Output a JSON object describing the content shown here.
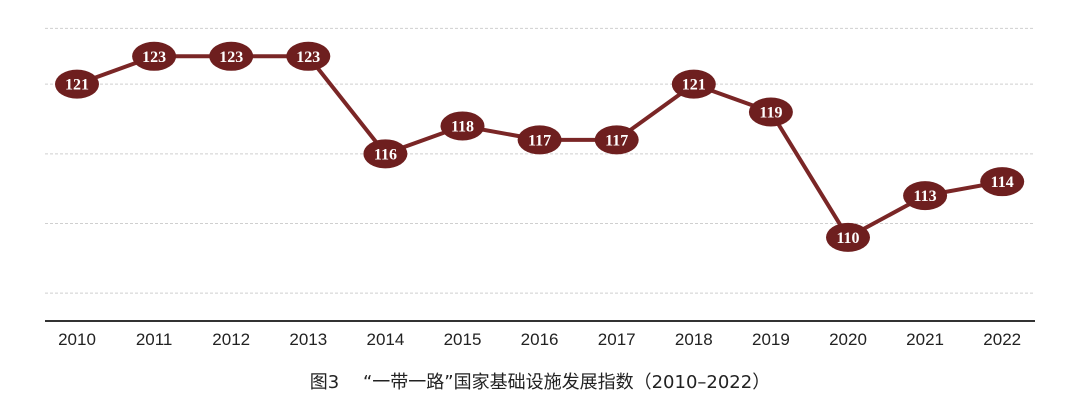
{
  "chart_data": {
    "type": "line",
    "title": "",
    "xlabel": "",
    "ylabel": "",
    "x": [
      "2010",
      "2011",
      "2012",
      "2013",
      "2014",
      "2015",
      "2016",
      "2017",
      "2018",
      "2019",
      "2020",
      "2021",
      "2022"
    ],
    "series": [
      {
        "values": [
          121,
          123,
          123,
          123,
          116,
          118,
          117,
          117,
          121,
          119,
          110,
          113,
          114
        ]
      }
    ],
    "ylim": [
      104,
      126
    ],
    "grid": true,
    "data_labels": true
  },
  "caption": "图3　 “一带一路”国家基础设施发展指数（2010–2022）",
  "colors": {
    "line": "#7a2626",
    "marker": "#6e1f1f",
    "grid": "#cfcfcf",
    "axis": "#333333",
    "label_text": "#ffffff"
  }
}
